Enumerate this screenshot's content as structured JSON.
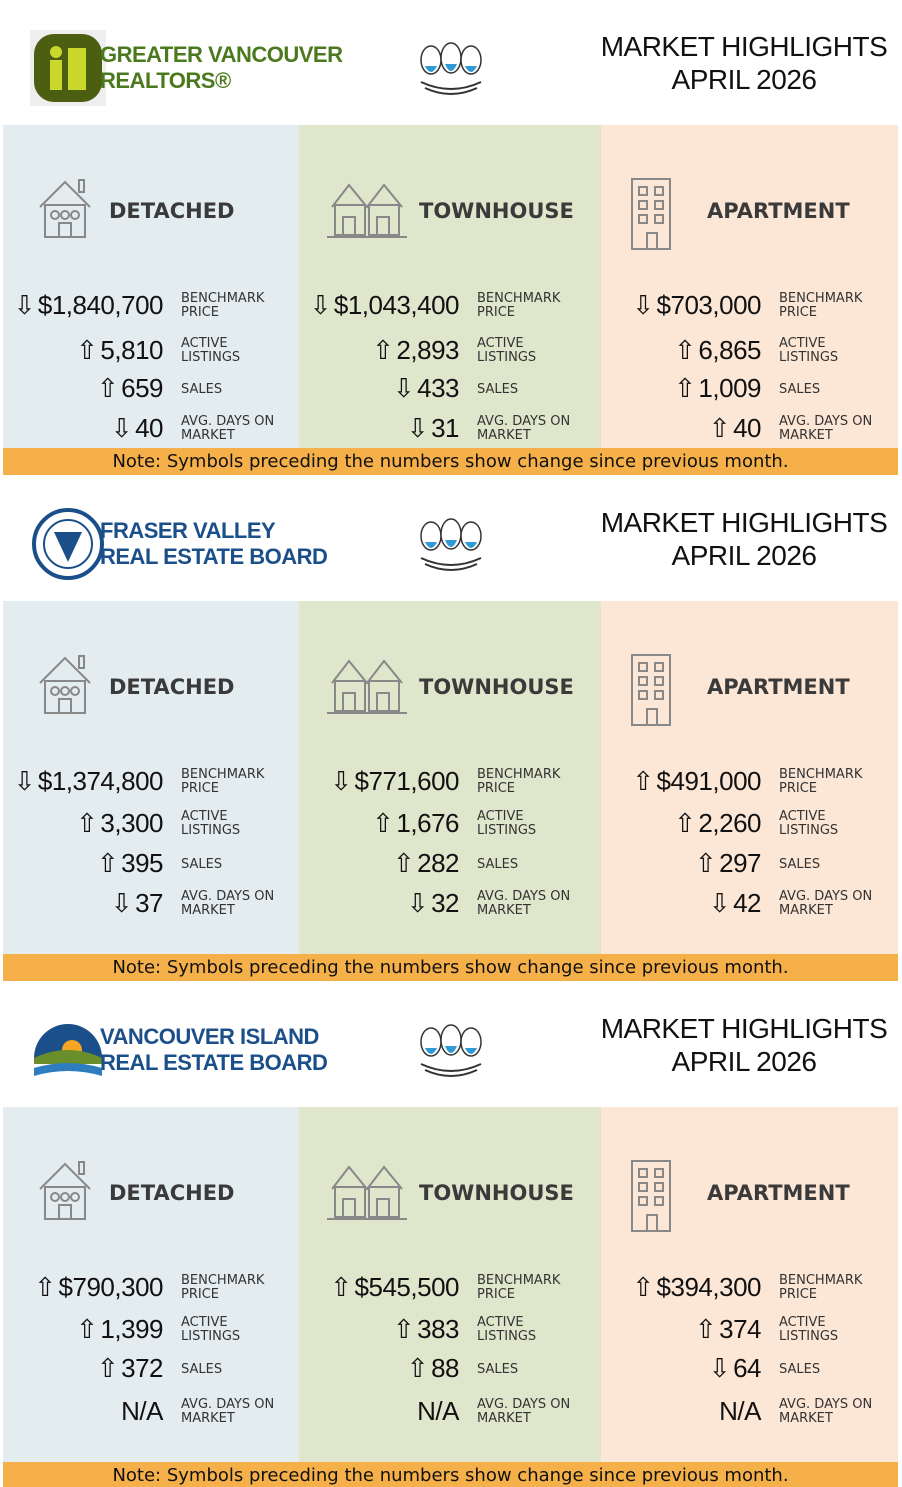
{
  "metrics": [
    [
      "BENCHMARK",
      "PRICE"
    ],
    [
      "ACTIVE",
      "LISTINGS"
    ],
    [
      "SALES"
    ],
    [
      "AVG. DAYS ON",
      "MARKET"
    ]
  ],
  "sections": [
    {
      "board": [
        "GREATER VANCOUVER",
        "REALTORS®"
      ],
      "heading": [
        "MARKET HIGHLIGHTS",
        "APRIL 2026"
      ],
      "columns": [
        {
          "type": "DETACHED",
          "rows": [
            {
              "arrow": "⇩",
              "value": "$1,840,700"
            },
            {
              "arrow": "⇧",
              "value": "5,810"
            },
            {
              "arrow": "⇧",
              "value": "659"
            },
            {
              "arrow": "⇩",
              "value": "40"
            }
          ]
        },
        {
          "type": "TOWNHOUSE",
          "rows": [
            {
              "arrow": "⇩",
              "value": "$1,043,400"
            },
            {
              "arrow": "⇧",
              "value": "2,893"
            },
            {
              "arrow": "⇩",
              "value": "433"
            },
            {
              "arrow": "⇩",
              "value": "31"
            }
          ]
        },
        {
          "type": "APARTMENT",
          "rows": [
            {
              "arrow": "⇩",
              "value": "$703,000"
            },
            {
              "arrow": "⇧",
              "value": "6,865"
            },
            {
              "arrow": "⇧",
              "value": "1,009"
            },
            {
              "arrow": "⇧",
              "value": "40"
            }
          ]
        }
      ],
      "note": "Note: Symbols preceding the numbers show change since previous month."
    },
    {
      "board": [
        "FRASER VALLEY",
        "REAL ESTATE BOARD"
      ],
      "heading": [
        "MARKET HIGHLIGHTS",
        "APRIL 2026"
      ],
      "columns": [
        {
          "type": "DETACHED",
          "rows": [
            {
              "arrow": "⇩",
              "value": "$1,374,800"
            },
            {
              "arrow": "⇧",
              "value": "3,300"
            },
            {
              "arrow": "⇧",
              "value": "395"
            },
            {
              "arrow": "⇩",
              "value": "37"
            }
          ]
        },
        {
          "type": "TOWNHOUSE",
          "rows": [
            {
              "arrow": "⇩",
              "value": "$771,600"
            },
            {
              "arrow": "⇧",
              "value": "1,676"
            },
            {
              "arrow": "⇧",
              "value": "282"
            },
            {
              "arrow": "⇩",
              "value": "32"
            }
          ]
        },
        {
          "type": "APARTMENT",
          "rows": [
            {
              "arrow": "⇧",
              "value": "$491,000"
            },
            {
              "arrow": "⇧",
              "value": "2,260"
            },
            {
              "arrow": "⇧",
              "value": "297"
            },
            {
              "arrow": "⇩",
              "value": "42"
            }
          ]
        }
      ],
      "note": "Note: Symbols preceding the numbers show change since previous month."
    },
    {
      "board": [
        "VANCOUVER ISLAND",
        "REAL ESTATE BOARD"
      ],
      "heading": [
        "MARKET HIGHLIGHTS",
        "APRIL 2026"
      ],
      "columns": [
        {
          "type": "DETACHED",
          "rows": [
            {
              "arrow": "⇧",
              "value": "$790,300"
            },
            {
              "arrow": "⇧",
              "value": "1,399"
            },
            {
              "arrow": "⇧",
              "value": "372"
            },
            {
              "value": "N/A"
            }
          ]
        },
        {
          "type": "TOWNHOUSE",
          "rows": [
            {
              "arrow": "⇧",
              "value": "$545,500"
            },
            {
              "arrow": "⇧",
              "value": "383"
            },
            {
              "arrow": "⇧",
              "value": "88"
            },
            {
              "value": "N/A"
            }
          ]
        },
        {
          "type": "APARTMENT",
          "rows": [
            {
              "arrow": "⇧",
              "value": "$394,300"
            },
            {
              "arrow": "⇧",
              "value": "374"
            },
            {
              "arrow": "⇩",
              "value": "64"
            },
            {
              "value": "N/A"
            }
          ]
        }
      ],
      "note": "Note: Symbols preceding the numbers show change since previous month."
    }
  ]
}
